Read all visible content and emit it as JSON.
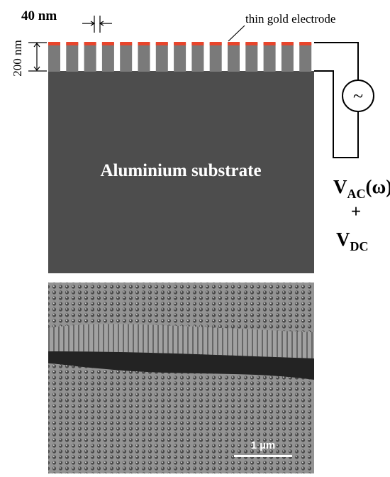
{
  "top_figure": {
    "pore_width_label": "40 nm",
    "height_label": "200 nm",
    "electrode_label": "thin gold electrode",
    "substrate_label": "Aluminium substrate",
    "source_symbol": "~",
    "vac": {
      "main": "V",
      "sub": "AC",
      "suffix": "(ω)"
    },
    "plus": "+",
    "vdc": {
      "main": "V",
      "sub": "DC"
    }
  },
  "bottom_figure": {
    "scale_bar_label": "1 µm"
  }
}
